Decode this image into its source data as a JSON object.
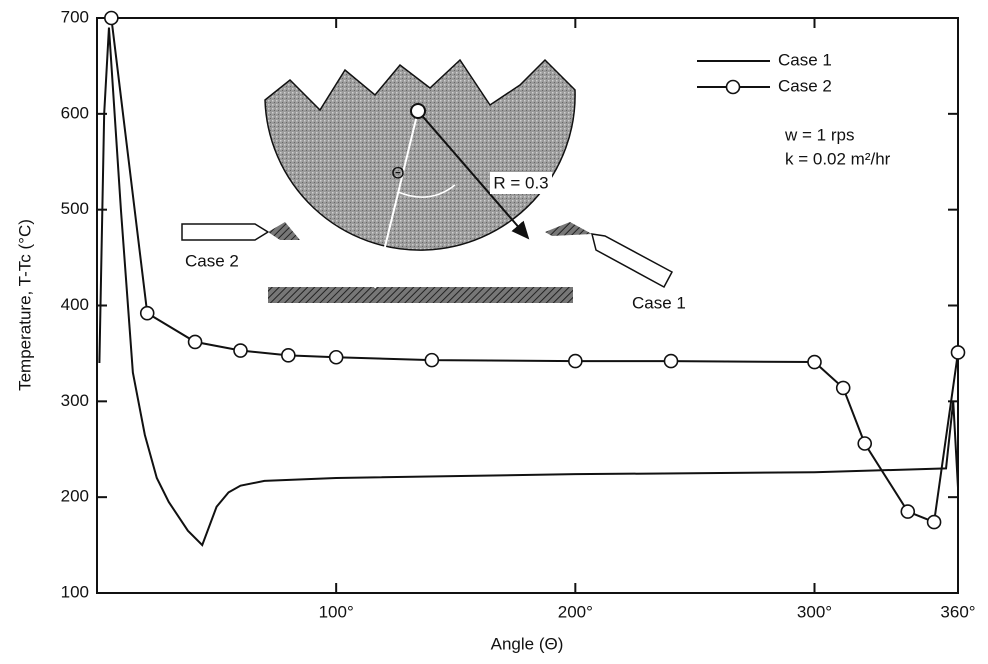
{
  "chart_data": {
    "type": "line",
    "xlabel": "Angle (Θ)",
    "ylabel": "Temperature, T-Tc (°C)",
    "xlim": [
      0,
      360
    ],
    "ylim": [
      100,
      700
    ],
    "xticks": [
      {
        "value": 100,
        "label": "100°"
      },
      {
        "value": 200,
        "label": "200°"
      },
      {
        "value": 300,
        "label": "300°"
      },
      {
        "value": 360,
        "label": "360°"
      }
    ],
    "yticks": [
      100,
      200,
      300,
      400,
      500,
      600,
      700
    ],
    "legend": "upper right",
    "series": [
      {
        "name": "Case 1",
        "color": "#111111",
        "marker": "none",
        "x": [
          1,
          3,
          5,
          10,
          15,
          20,
          25,
          30,
          38,
          44,
          50,
          55,
          60,
          70,
          100,
          200,
          300,
          355,
          358,
          360
        ],
        "values": [
          340,
          600,
          690,
          500,
          330,
          265,
          220,
          195,
          165,
          150,
          190,
          205,
          212,
          217,
          220,
          224,
          226,
          230,
          300,
          210
        ]
      },
      {
        "name": "Case 2",
        "color": "#111111",
        "marker": "circle",
        "x": [
          6,
          21,
          41,
          60,
          80,
          100,
          140,
          200,
          240,
          300,
          312,
          321,
          339,
          350,
          360
        ],
        "values": [
          700,
          392,
          362,
          353,
          348,
          346,
          343,
          342,
          342,
          341,
          314,
          256,
          185,
          174,
          351
        ]
      }
    ],
    "annotations": [
      "w = 1 rps",
      "k = 0.02 m²/hr"
    ],
    "inset": {
      "labels": [
        "Case 2",
        "Case 1",
        "Θ",
        "R = 0.3"
      ]
    }
  }
}
